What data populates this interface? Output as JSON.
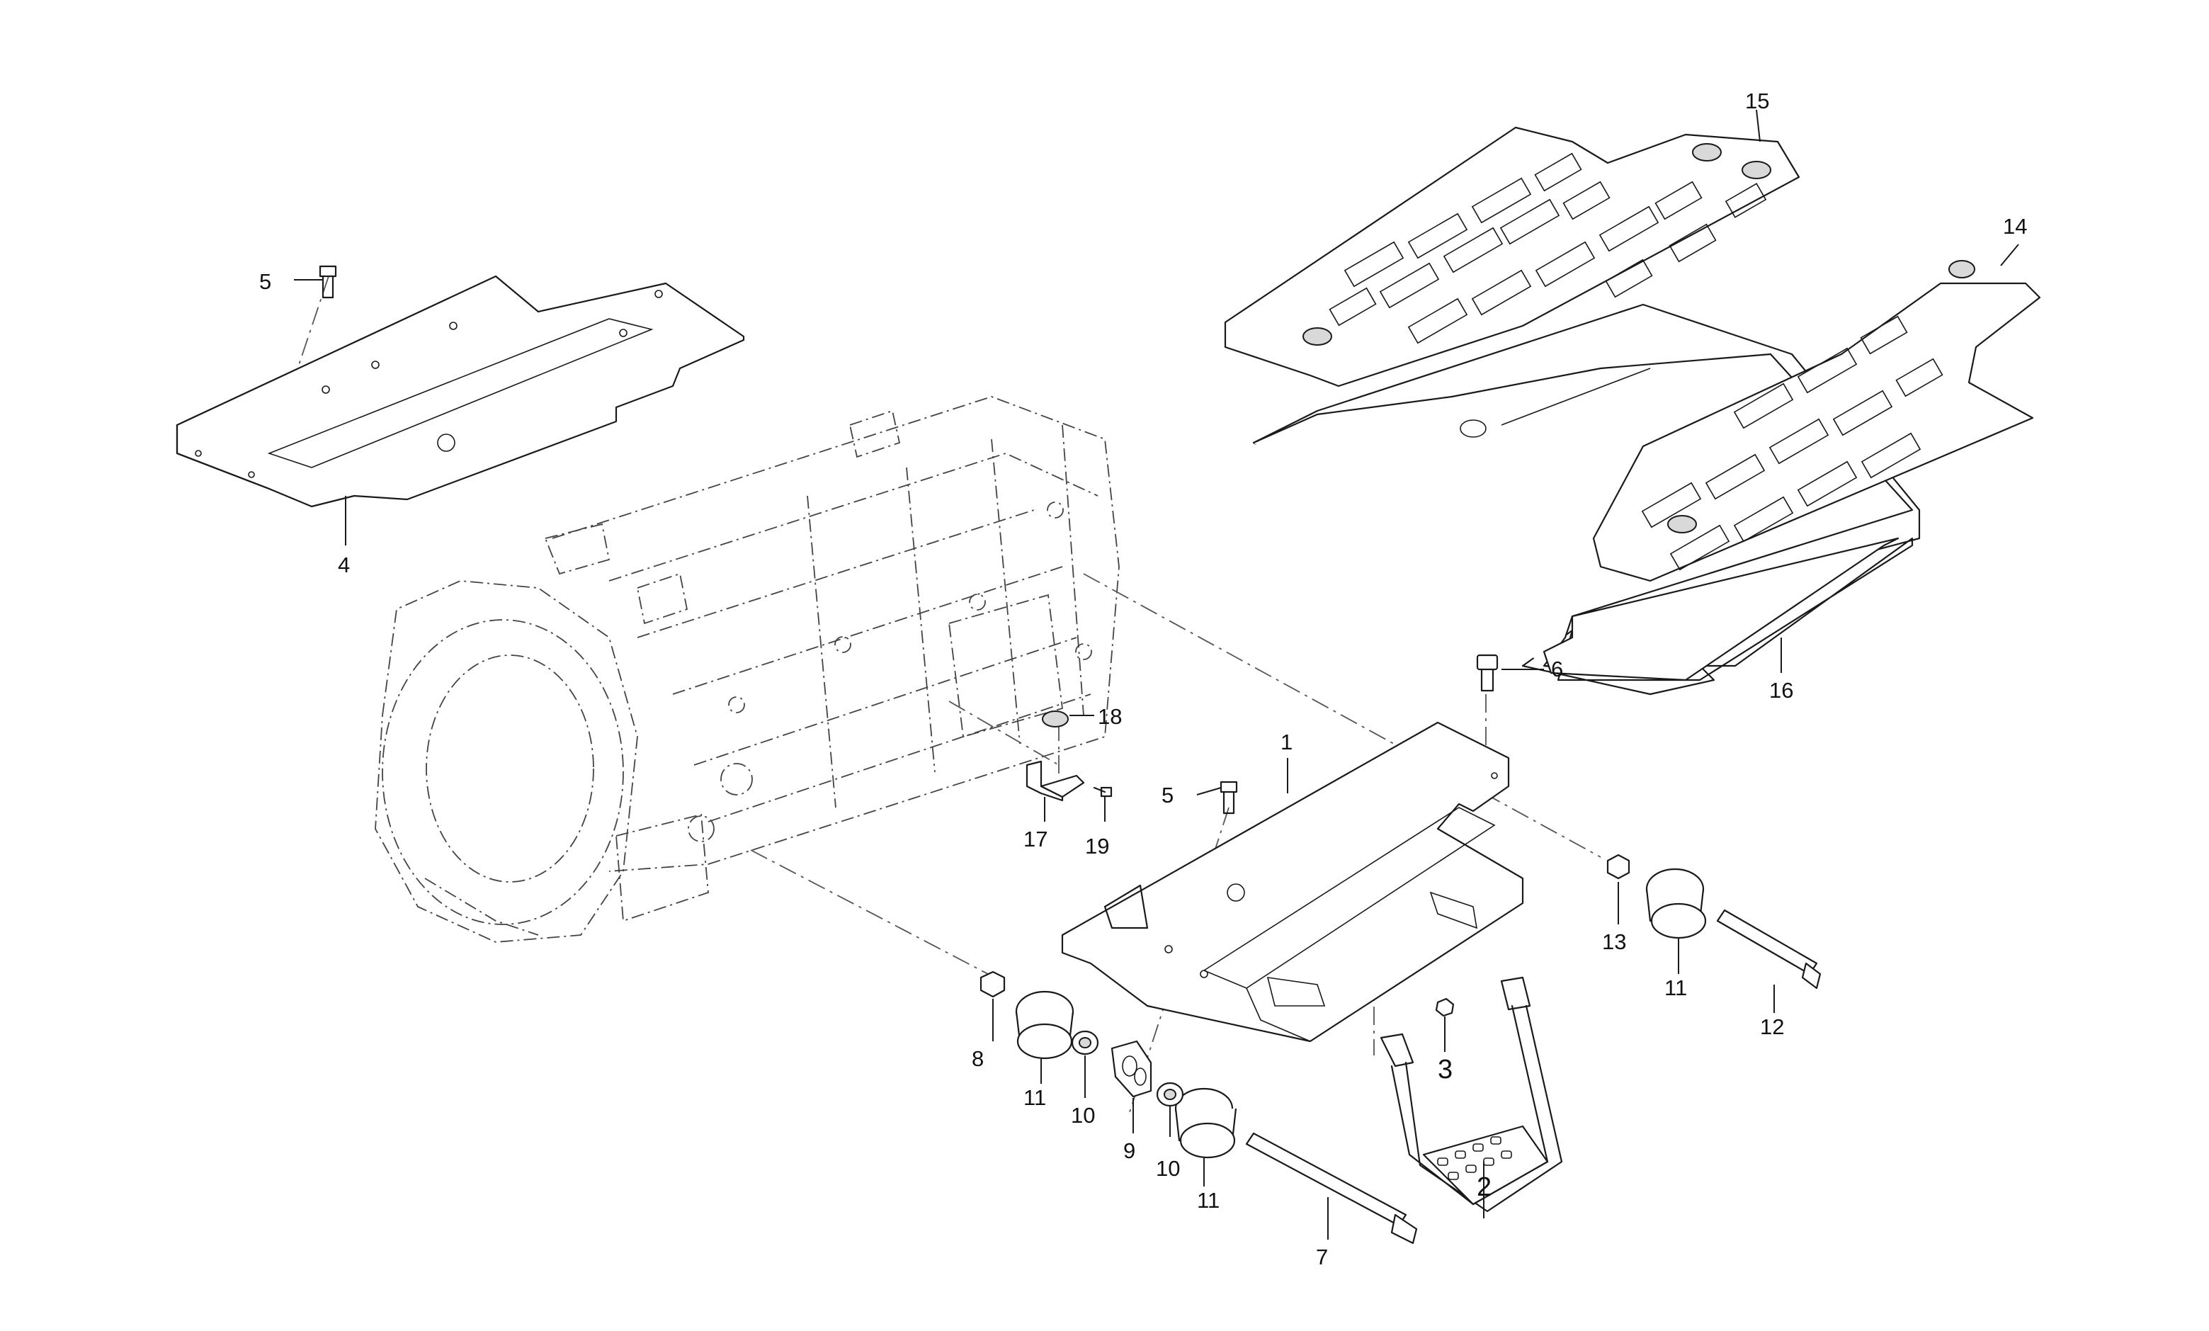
{
  "callouts": {
    "c1": "1",
    "c2": "2",
    "c3": "3",
    "c4": "4",
    "c5a": "5",
    "c5b": "5",
    "c6": "6",
    "c7": "7",
    "c8": "8",
    "c9": "9",
    "c10a": "10",
    "c10b": "10",
    "c11a": "11",
    "c11b": "11",
    "c11c": "11",
    "c12": "12",
    "c13": "13",
    "c14": "14",
    "c15": "15",
    "c16": "16",
    "c17": "17",
    "c18": "18",
    "c19": "19"
  }
}
